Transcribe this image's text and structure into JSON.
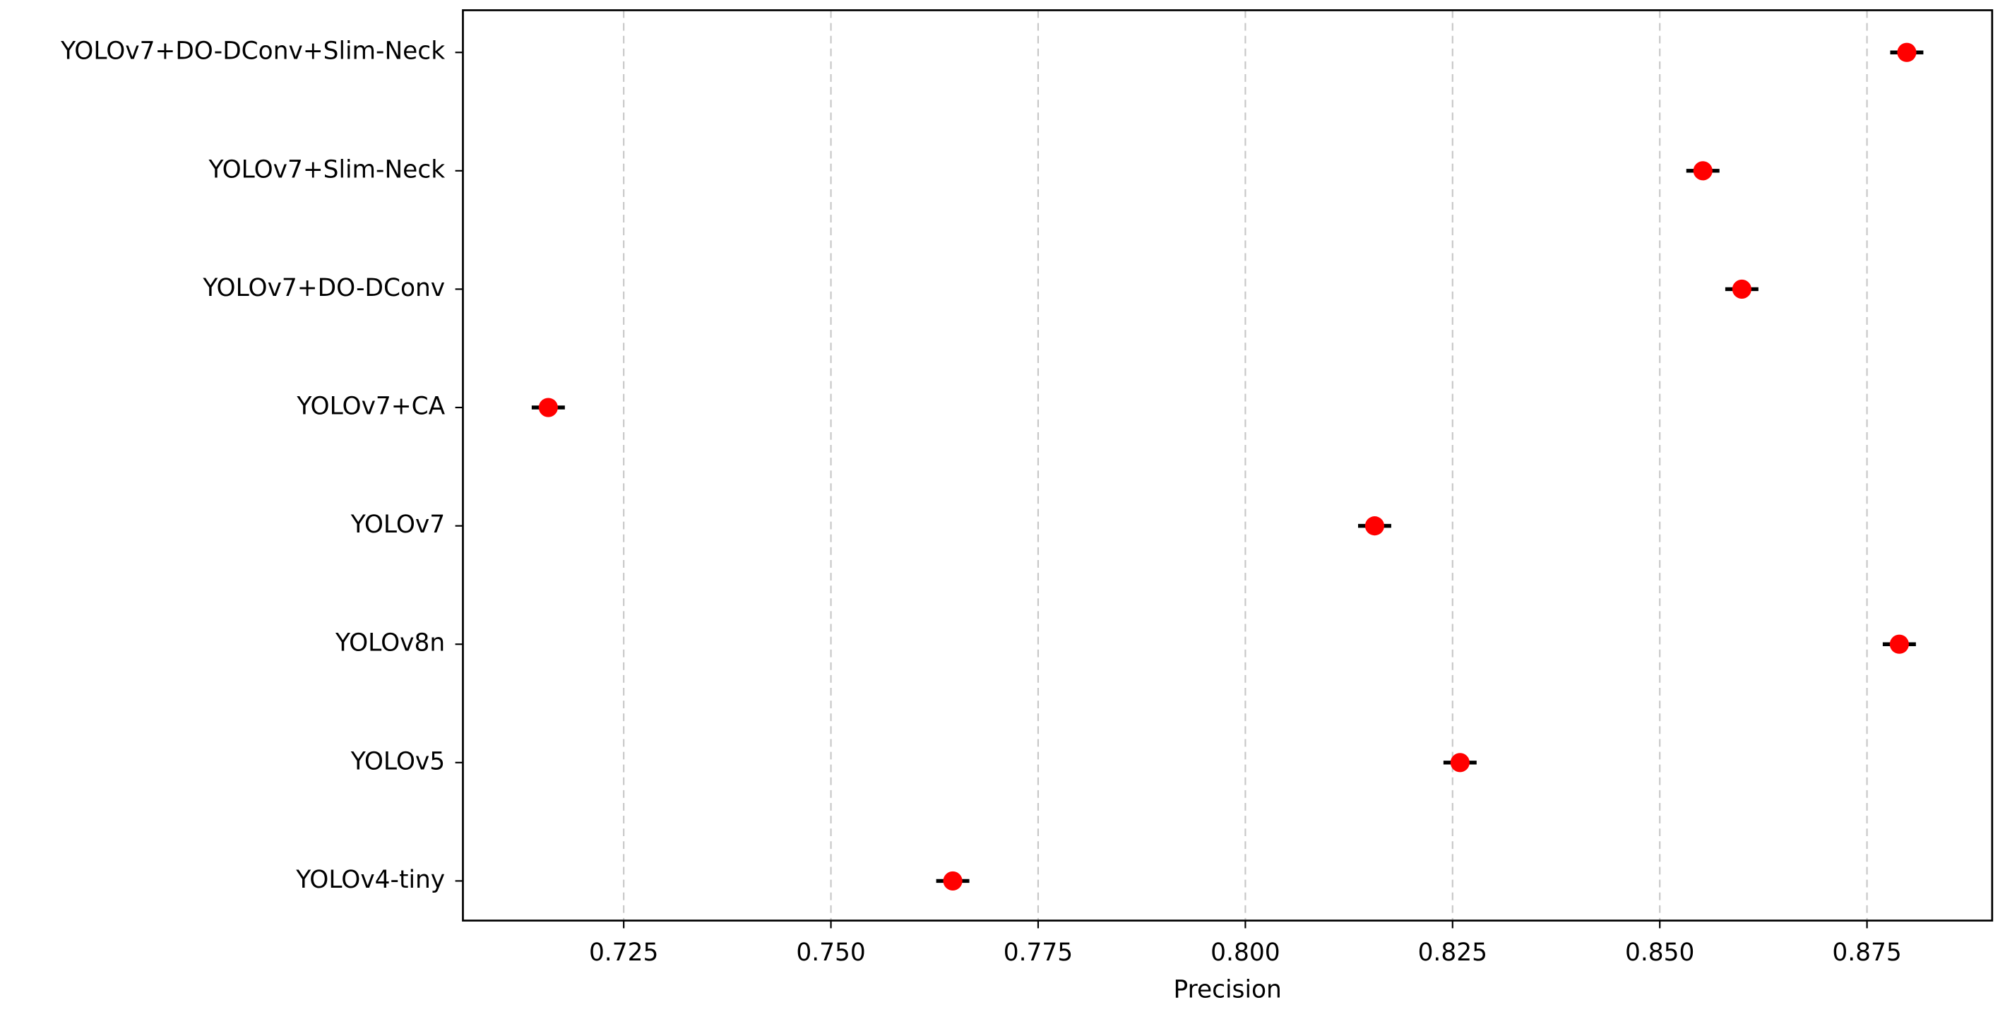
{
  "chart_data": {
    "type": "dot_errorbar",
    "orientation": "horizontal",
    "xlabel": "Precision",
    "categories": [
      "YOLOv7+DO-DConv+Slim-Neck",
      "YOLOv7+Slim-Neck",
      "YOLOv7+DO-DConv",
      "YOLOv7+CA",
      "YOLOv7",
      "YOLOv8n",
      "YOLOv5",
      "YOLOv4-tiny"
    ],
    "values": [
      0.8798,
      0.8552,
      0.8599,
      0.7159,
      0.8156,
      0.8789,
      0.8259,
      0.7647
    ],
    "errors": [
      0.002,
      0.002,
      0.002,
      0.002,
      0.002,
      0.002,
      0.002,
      0.002
    ],
    "color": "#ff0000",
    "error_color": "#000000",
    "xlim": [
      0.7056,
      0.8901
    ],
    "xticks": [
      {
        "value": 0.725,
        "label": "0.725"
      },
      {
        "value": 0.75,
        "label": "0.750"
      },
      {
        "value": 0.775,
        "label": "0.775"
      },
      {
        "value": 0.8,
        "label": "0.800"
      },
      {
        "value": 0.825,
        "label": "0.825"
      },
      {
        "value": 0.85,
        "label": "0.850"
      },
      {
        "value": 0.875,
        "label": "0.875"
      }
    ],
    "grid": true
  }
}
